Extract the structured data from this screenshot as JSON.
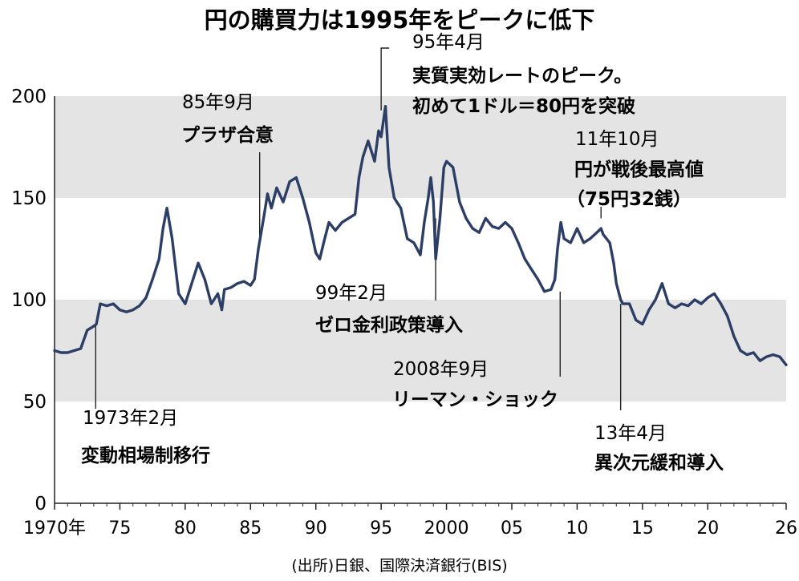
{
  "chart_data": {
    "type": "line",
    "title": "円の購買力は1995年をピークに低下",
    "source": "(出所)日銀、国際決済銀行(BIS)",
    "ylim": [
      0,
      200
    ],
    "y_ticks": [
      "0",
      "50",
      "100",
      "150",
      "200"
    ],
    "shaded_bands": [
      [
        50,
        100
      ],
      [
        150,
        200
      ]
    ],
    "xlim": [
      1970,
      2026
    ],
    "x_ticks": [
      {
        "x": 1970,
        "label": "1970年"
      },
      {
        "x": 1975,
        "label": "75"
      },
      {
        "x": 1980,
        "label": "80"
      },
      {
        "x": 1985,
        "label": "85"
      },
      {
        "x": 1990,
        "label": "90"
      },
      {
        "x": 1995,
        "label": "95"
      },
      {
        "x": 2000,
        "label": "2000"
      },
      {
        "x": 2005,
        "label": "05"
      },
      {
        "x": 2010,
        "label": "10"
      },
      {
        "x": 2015,
        "label": "15"
      },
      {
        "x": 2020,
        "label": "20"
      },
      {
        "x": 2026,
        "label": "26"
      }
    ],
    "grid": false,
    "line_color": "#2c3e66",
    "series": [
      {
        "x": [
          1970.0,
          1970.5,
          1971.0,
          1971.5,
          1972.0,
          1972.5,
          1973.0,
          1973.2,
          1973.5,
          1974.0,
          1974.5,
          1975.0,
          1975.5,
          1976.0,
          1976.5,
          1977.0,
          1977.5,
          1978.0,
          1978.3,
          1978.6,
          1979.0,
          1979.5,
          1980.0,
          1980.5,
          1981.0,
          1981.5,
          1982.0,
          1982.5,
          1982.8,
          1983.0,
          1983.5,
          1984.0,
          1984.5,
          1985.0,
          1985.3,
          1985.6,
          1986.0,
          1986.3,
          1986.6,
          1987.0,
          1987.5,
          1988.0,
          1988.5,
          1989.0,
          1989.5,
          1990.0,
          1990.3,
          1990.6,
          1991.0,
          1991.5,
          1992.0,
          1992.5,
          1993.0,
          1993.3,
          1993.6,
          1994.0,
          1994.5,
          1994.8,
          1995.0,
          1995.33,
          1995.6,
          1996.0,
          1996.5,
          1997.0,
          1997.5,
          1998.0,
          1998.3,
          1998.6,
          1998.8,
          1999.0,
          1999.17,
          1999.5,
          1999.8,
          2000.0,
          2000.5,
          2001.0,
          2001.5,
          2002.0,
          2002.5,
          2003.0,
          2003.5,
          2004.0,
          2004.5,
          2005.0,
          2005.5,
          2006.0,
          2006.5,
          2007.0,
          2007.5,
          2008.0,
          2008.3,
          2008.5,
          2008.75,
          2009.0,
          2009.5,
          2010.0,
          2010.5,
          2011.0,
          2011.5,
          2011.83,
          2012.0,
          2012.5,
          2012.8,
          2013.0,
          2013.33,
          2013.5,
          2014.0,
          2014.5,
          2015.0,
          2015.5,
          2016.0,
          2016.5,
          2017.0,
          2017.5,
          2018.0,
          2018.5,
          2019.0,
          2019.5,
          2020.0,
          2020.5,
          2021.0,
          2021.5,
          2022.0,
          2022.5,
          2023.0,
          2023.5,
          2024.0,
          2024.5,
          2025.0,
          2025.5,
          2026.0
        ],
        "y": [
          75,
          74,
          74,
          75,
          76,
          85,
          87,
          88,
          98,
          97,
          98,
          95,
          94,
          95,
          97,
          101,
          110,
          120,
          135,
          145,
          130,
          103,
          98,
          108,
          118,
          110,
          98,
          103,
          95,
          105,
          106,
          108,
          109,
          107,
          110,
          125,
          140,
          152,
          145,
          155,
          148,
          158,
          160,
          150,
          138,
          123,
          120,
          128,
          138,
          134,
          138,
          140,
          142,
          160,
          170,
          178,
          168,
          183,
          180,
          195,
          165,
          150,
          145,
          130,
          128,
          122,
          138,
          150,
          160,
          148,
          120,
          140,
          165,
          168,
          165,
          148,
          140,
          135,
          133,
          140,
          136,
          135,
          138,
          135,
          128,
          120,
          115,
          110,
          104,
          105,
          110,
          125,
          138,
          130,
          128,
          135,
          128,
          130,
          133,
          135,
          132,
          128,
          118,
          108,
          100,
          98,
          98,
          90,
          88,
          95,
          100,
          108,
          98,
          96,
          98,
          97,
          100,
          98,
          101,
          103,
          98,
          92,
          82,
          75,
          73,
          74,
          70,
          72,
          73,
          72,
          68
        ]
      }
    ],
    "annotations": [
      {
        "date": "1973年2月",
        "text": "変動相場制移行"
      },
      {
        "date": "85年9月",
        "text": "プラザ合意"
      },
      {
        "date": "95年4月",
        "text": "実質実効レートのピーク。",
        "text2": "初めて1ドル＝80円を突破"
      },
      {
        "date": "99年2月",
        "text": "ゼロ金利政策導入"
      },
      {
        "date": "2008年9月",
        "text": "リーマン・ショック"
      },
      {
        "date": "11年10月",
        "text": "円が戦後最高値",
        "text2": "（75円32銭）"
      },
      {
        "date": "13年4月",
        "text": "異次元緩和導入"
      }
    ]
  }
}
